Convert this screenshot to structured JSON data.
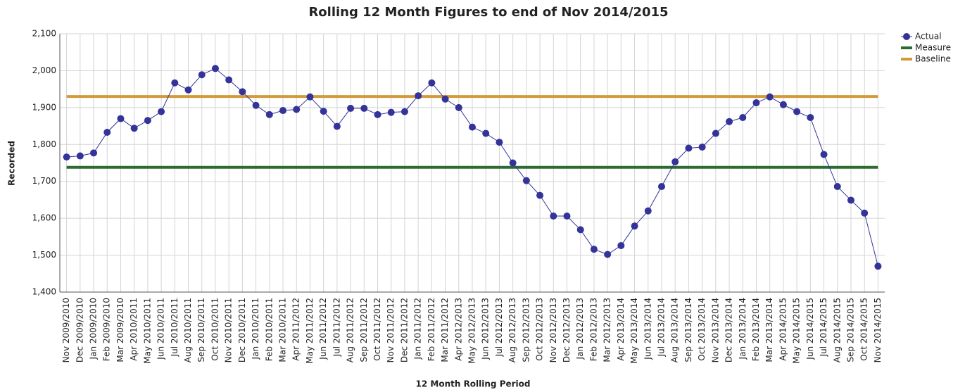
{
  "chart_data": {
    "type": "line",
    "title": "Rolling 12 Month Figures to end of Nov 2014/2015",
    "x_label": "12 Month Rolling Period",
    "y_label": "Recorded",
    "categories": [
      "Nov 2009/2010",
      "Dec 2009/2010",
      "Jan 2009/2010",
      "Feb 2009/2010",
      "Mar 2009/2010",
      "Apr 2010/2011",
      "May 2010/2011",
      "Jun 2010/2011",
      "Jul 2010/2011",
      "Aug 2010/2011",
      "Sep 2010/2011",
      "Oct 2010/2011",
      "Nov 2010/2011",
      "Dec 2010/2011",
      "Jan 2010/2011",
      "Feb 2010/2011",
      "Mar 2010/2011",
      "Apr 2011/2012",
      "May 2011/2012",
      "Jun 2011/2012",
      "Jul 2011/2012",
      "Aug 2011/2012",
      "Sep 2011/2012",
      "Oct 2011/2012",
      "Nov 2011/2012",
      "Dec 2011/2012",
      "Jan 2011/2012",
      "Feb 2011/2012",
      "Mar 2011/2012",
      "Apr 2012/2013",
      "May 2012/2013",
      "Jun 2012/2013",
      "Jul 2012/2013",
      "Aug 2012/2013",
      "Sep 2012/2013",
      "Oct 2012/2013",
      "Nov 2012/2013",
      "Dec 2012/2013",
      "Jan 2012/2013",
      "Feb 2012/2013",
      "Mar 2012/2013",
      "Apr 2013/2014",
      "May 2013/2014",
      "Jun 2013/2014",
      "Jul 2013/2014",
      "Aug 2013/2014",
      "Sep 2013/2014",
      "Oct 2013/2014",
      "Nov 2013/2014",
      "Dec 2013/2014",
      "Jan 2013/2014",
      "Feb 2013/2014",
      "Mar 2013/2014",
      "Apr 2014/2015",
      "May 2014/2015",
      "Jun 2014/2015",
      "Jul 2014/2015",
      "Aug 2014/2015",
      "Sep 2014/2015",
      "Oct 2014/2015",
      "Nov 2014/2015"
    ],
    "series": [
      {
        "name": "Actual",
        "color": "#333399",
        "markers": true,
        "values": [
          1766,
          1769,
          1777,
          1833,
          1870,
          1844,
          1865,
          1889,
          1967,
          1948,
          1989,
          2006,
          1975,
          1943,
          1906,
          1881,
          1892,
          1895,
          1929,
          1890,
          1849,
          1898,
          1898,
          1881,
          1887,
          1889,
          1932,
          1967,
          1923,
          1900,
          1847,
          1830,
          1806,
          1750,
          1702,
          1662,
          1606,
          1606,
          1569,
          1516,
          1502,
          1526,
          1579,
          1620,
          1686,
          1753,
          1790,
          1793,
          1830,
          1862,
          1873,
          1913,
          1929,
          1908,
          1889,
          1873,
          1773,
          1686,
          1649,
          1614,
          1470
        ]
      },
      {
        "name": "Measure",
        "color": "#2e6b30",
        "markers": false,
        "values": [
          1738,
          1738,
          1738,
          1738,
          1738,
          1738,
          1738,
          1738,
          1738,
          1738,
          1738,
          1738,
          1738,
          1738,
          1738,
          1738,
          1738,
          1738,
          1738,
          1738,
          1738,
          1738,
          1738,
          1738,
          1738,
          1738,
          1738,
          1738,
          1738,
          1738,
          1738,
          1738,
          1738,
          1738,
          1738,
          1738,
          1738,
          1738,
          1738,
          1738,
          1738,
          1738,
          1738,
          1738,
          1738,
          1738,
          1738,
          1738,
          1738,
          1738,
          1738,
          1738,
          1738,
          1738,
          1738,
          1738,
          1738,
          1738,
          1738,
          1738,
          1738
        ]
      },
      {
        "name": "Baseline",
        "color": "#d49a3a",
        "markers": false,
        "values": [
          1930,
          1930,
          1930,
          1930,
          1930,
          1930,
          1930,
          1930,
          1930,
          1930,
          1930,
          1930,
          1930,
          1930,
          1930,
          1930,
          1930,
          1930,
          1930,
          1930,
          1930,
          1930,
          1930,
          1930,
          1930,
          1930,
          1930,
          1930,
          1930,
          1930,
          1930,
          1930,
          1930,
          1930,
          1930,
          1930,
          1930,
          1930,
          1930,
          1930,
          1930,
          1930,
          1930,
          1930,
          1930,
          1930,
          1930,
          1930,
          1930,
          1930,
          1930,
          1930,
          1930,
          1930,
          1930,
          1930,
          1930,
          1930,
          1930,
          1930,
          1930
        ]
      }
    ],
    "ylim": [
      1400,
      2100
    ],
    "yticks": [
      {
        "value": 1400,
        "label": "1,400"
      },
      {
        "value": 1500,
        "label": "1,500"
      },
      {
        "value": 1600,
        "label": "1,600"
      },
      {
        "value": 1700,
        "label": "1,700"
      },
      {
        "value": 1800,
        "label": "1,800"
      },
      {
        "value": 1900,
        "label": "1,900"
      },
      {
        "value": 2000,
        "label": "2,000"
      },
      {
        "value": 2100,
        "label": "2,100"
      }
    ],
    "grid": true,
    "legend": "top-right"
  }
}
